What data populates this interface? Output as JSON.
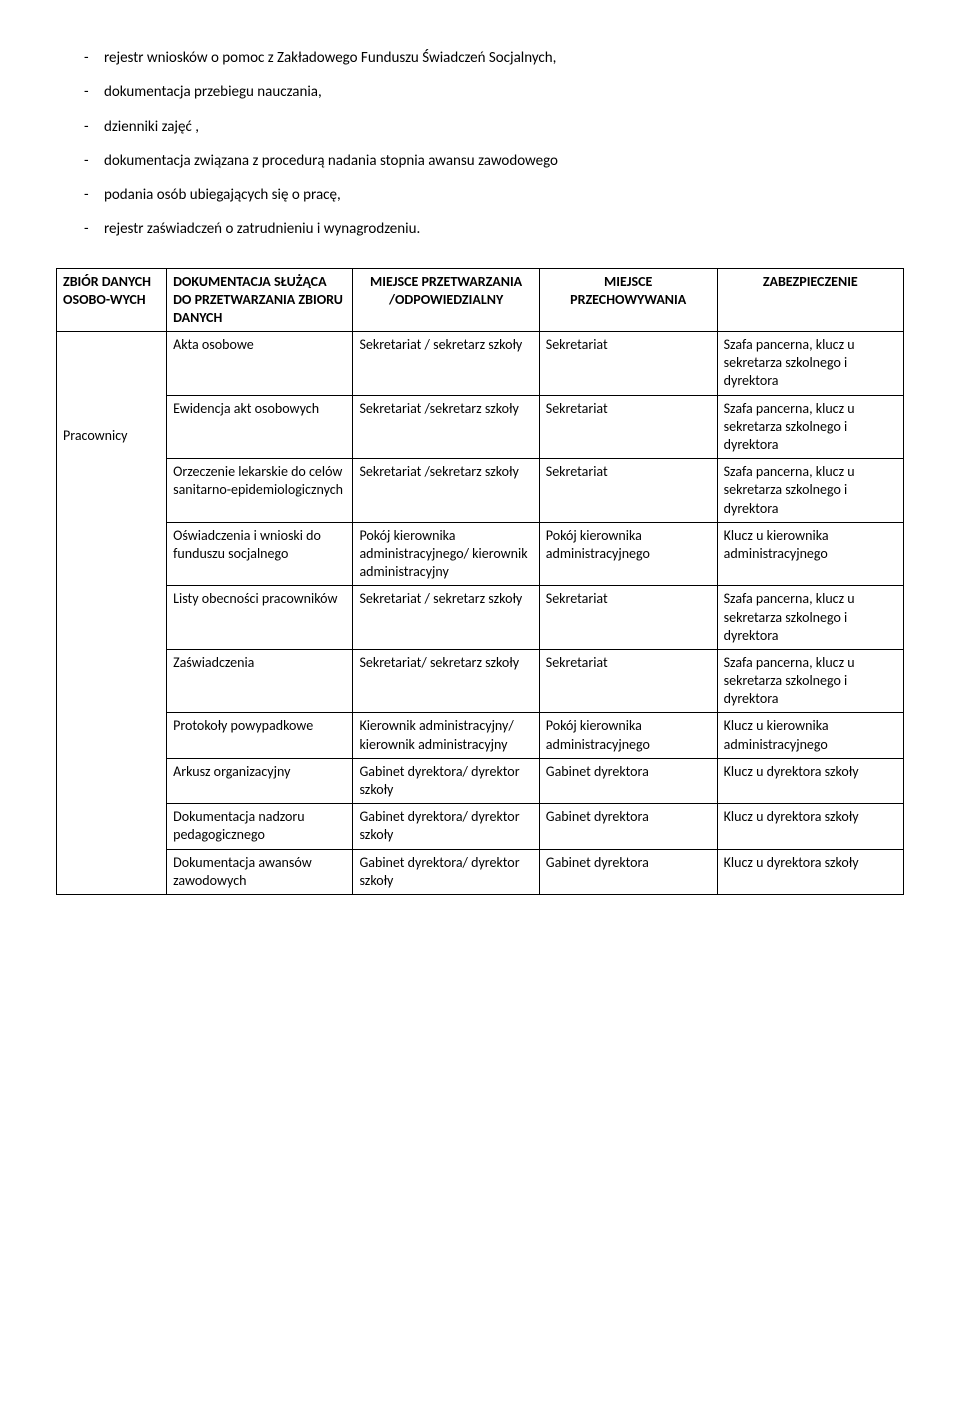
{
  "bullets": [
    "rejestr wniosków o pomoc z Zakładowego Funduszu Świadczeń Socjalnych,",
    "dokumentacja przebiegu nauczania,",
    "dzienniki zajęć ,",
    "dokumentacja związana z procedurą nadania stopnia awansu zawodowego",
    "podania osób ubiegających się o pracę,",
    "rejestr zaświadczeń o zatrudnieniu i wynagrodzeniu."
  ],
  "table": {
    "headers": {
      "col0": "ZBIÓR DANYCH OSOBO-WYCH",
      "col1": "DOKUMENTACJA SŁUŻĄCA DO PRZETWARZANIA ZBIORU DANYCH",
      "col2": "MIEJSCE PRZETWARZANIA /ODPOWIEDZIALNY",
      "col3": "MIEJSCE PRZECHOWYWANIA",
      "col4": "ZABEZPIECZENIE"
    },
    "group_label": "Pracownicy",
    "rows": [
      {
        "c1": "Akta osobowe",
        "c2": "Sekretariat / sekretarz szkoły",
        "c3": "Sekretariat",
        "c4": "Szafa pancerna, klucz u sekretarza szkolnego i dyrektora"
      },
      {
        "c1": "Ewidencja akt osobowych",
        "c2": "Sekretariat /sekretarz szkoły",
        "c3": "Sekretariat",
        "c4": "Szafa pancerna, klucz u sekretarza szkolnego i dyrektora"
      },
      {
        "c1": "Orzeczenie lekarskie do celów sanitarno-epidemiologicznych",
        "c2": "Sekretariat /sekretarz szkoły",
        "c3": "Sekretariat",
        "c4": "Szafa pancerna, klucz u sekretarza szkolnego i dyrektora"
      },
      {
        "c1": "Oświadczenia i wnioski do funduszu socjalnego",
        "c2": "Pokój kierownika administracyjnego/ kierownik administracyjny",
        "c3": "Pokój kierownika administracyjnego",
        "c4": "Klucz u kierownika administracyjnego"
      },
      {
        "c1": "Listy obecności pracowników",
        "c2": "Sekretariat / sekretarz szkoły",
        "c3": "Sekretariat",
        "c4": "Szafa pancerna, klucz u sekretarza szkolnego i dyrektora"
      },
      {
        "c1": "Zaświadczenia",
        "c2": "Sekretariat/ sekretarz szkoły",
        "c3": "Sekretariat",
        "c4": "Szafa pancerna, klucz u sekretarza szkolnego i dyrektora"
      },
      {
        "c1": "Protokoły powypadkowe",
        "c2": "Kierownik administracyjny/ kierownik administracyjny",
        "c3": "Pokój kierownika administracyjnego",
        "c4": "Klucz u kierownika administracyjnego"
      },
      {
        "c1": "Arkusz organizacyjny",
        "c2": "Gabinet dyrektora/ dyrektor szkoły",
        "c3": "Gabinet dyrektora",
        "c4": "Klucz u dyrektora szkoły"
      },
      {
        "c1": "Dokumentacja nadzoru pedagogicznego",
        "c2": "Gabinet dyrektora/ dyrektor szkoły",
        "c3": "Gabinet dyrektora",
        "c4": "Klucz u dyrektora szkoły"
      },
      {
        "c1": "Dokumentacja awansów zawodowych",
        "c2": "Gabinet dyrektora/ dyrektor szkoły",
        "c3": "Gabinet dyrektora",
        "c4": "Klucz u dyrektora szkoły"
      }
    ]
  }
}
